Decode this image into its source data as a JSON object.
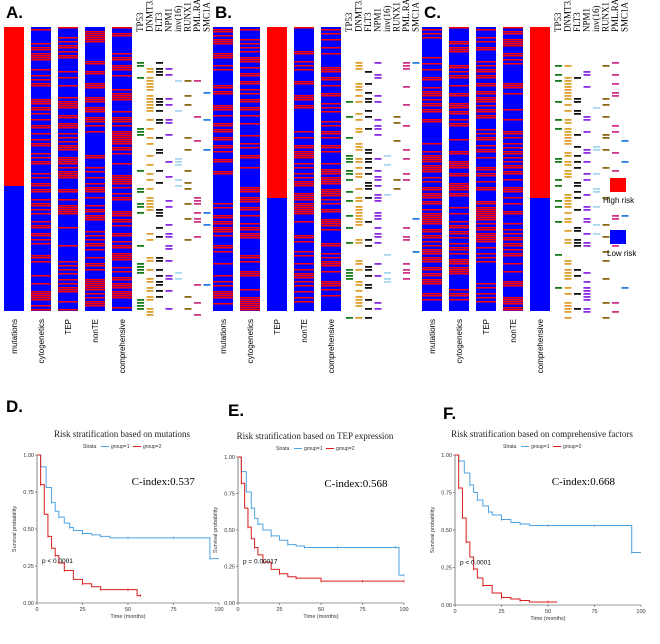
{
  "colors": {
    "high": "#ff0000",
    "low": "#0000ff",
    "km_group1": "#4fa3e0",
    "km_group2": "#d81e1e"
  },
  "legend": {
    "high_label": "High risk",
    "low_label": "Low risk"
  },
  "gene_labels": [
    "TP53",
    "DNMT3A",
    "FLT3",
    "NPM1",
    "inv(16)",
    "RUNX1",
    "PML.RARα",
    "SMC1A"
  ],
  "gene_colors": [
    "#1a7a1a",
    "#e0a030",
    "#111111",
    "#8a2be2",
    "#a8d8f0",
    "#8b6914",
    "#d0358a",
    "#2a7de1"
  ],
  "heatmaps": [
    {
      "label": "A.",
      "columns": [
        "mutations",
        "cytogenetics",
        "TEP",
        "nonTE",
        "comprehensive"
      ]
    },
    {
      "label": "B.",
      "columns": [
        "mutations",
        "cytogenetics",
        "TEP",
        "nonTE",
        "comprehensive"
      ]
    },
    {
      "label": "C.",
      "columns": [
        "mutations",
        "cytogenetics",
        "TEP",
        "nonTE",
        "comprehensive"
      ]
    }
  ],
  "chart_data": [
    {
      "type": "line",
      "panel": "D.",
      "title": "Risk stratification based on mutations",
      "xlabel": "Time (months)",
      "ylabel": "Survival probability",
      "strata_label": "Strata",
      "legend": [
        "group=1",
        "group=2"
      ],
      "c_index": "C-index:0.537",
      "p_value": "p < 0.0001",
      "xlim": [
        0,
        100
      ],
      "ylim": [
        0,
        1
      ],
      "x_ticks": [
        "0",
        "25",
        "50",
        "75",
        "100"
      ],
      "y_ticks": [
        "0.00",
        "0.25",
        "0.50",
        "0.75",
        "1.00"
      ],
      "series": [
        {
          "name": "group=1",
          "x": [
            0,
            2,
            5,
            8,
            10,
            12,
            15,
            18,
            20,
            25,
            30,
            35,
            40,
            50,
            60,
            75,
            95,
            95,
            100
          ],
          "y": [
            1.0,
            0.92,
            0.78,
            0.68,
            0.62,
            0.58,
            0.54,
            0.51,
            0.49,
            0.47,
            0.46,
            0.45,
            0.44,
            0.44,
            0.44,
            0.44,
            0.44,
            0.3,
            0.3
          ]
        },
        {
          "name": "group=2",
          "x": [
            0,
            2,
            4,
            6,
            8,
            10,
            12,
            15,
            20,
            25,
            30,
            35,
            40,
            50,
            55,
            57
          ],
          "y": [
            1.0,
            0.8,
            0.6,
            0.45,
            0.37,
            0.32,
            0.27,
            0.22,
            0.16,
            0.13,
            0.11,
            0.09,
            0.09,
            0.09,
            0.05,
            0.05
          ]
        }
      ]
    },
    {
      "type": "line",
      "panel": "E.",
      "title": "Risk stratification based on TEP expression",
      "xlabel": "Time (months)",
      "ylabel": "Survival probability",
      "strata_label": "Strata",
      "legend": [
        "group=1",
        "group=2"
      ],
      "c_index": "C-index:0.568",
      "p_value": "p = 0.00017",
      "xlim": [
        0,
        100
      ],
      "ylim": [
        0,
        1
      ],
      "x_ticks": [
        "0",
        "25",
        "50",
        "75",
        "100"
      ],
      "y_ticks": [
        "0.00",
        "0.25",
        "0.50",
        "0.75",
        "1.00"
      ],
      "series": [
        {
          "name": "group=1",
          "x": [
            0,
            2,
            5,
            8,
            10,
            12,
            15,
            20,
            25,
            30,
            35,
            40,
            50,
            60,
            75,
            95,
            97,
            100
          ],
          "y": [
            1.0,
            0.9,
            0.76,
            0.65,
            0.58,
            0.54,
            0.5,
            0.46,
            0.43,
            0.4,
            0.39,
            0.38,
            0.38,
            0.38,
            0.38,
            0.38,
            0.19,
            0.19
          ]
        },
        {
          "name": "group=2",
          "x": [
            0,
            2,
            4,
            6,
            8,
            10,
            12,
            15,
            20,
            25,
            30,
            35,
            40,
            50,
            60,
            75,
            90,
            100
          ],
          "y": [
            1.0,
            0.82,
            0.65,
            0.52,
            0.44,
            0.38,
            0.33,
            0.28,
            0.23,
            0.2,
            0.18,
            0.17,
            0.17,
            0.15,
            0.15,
            0.15,
            0.15,
            0.15
          ]
        }
      ]
    },
    {
      "type": "line",
      "panel": "F.",
      "title": "Risk stratification based on comprehensive  factors",
      "xlabel": "Time (months)",
      "ylabel": "Survival probability",
      "strata_label": "Strata",
      "legend": [
        "group=1",
        "group=2"
      ],
      "c_index": "C-index:0.668",
      "p_value": "p < 0.0001",
      "xlim": [
        0,
        100
      ],
      "ylim": [
        0,
        1
      ],
      "x_ticks": [
        "0",
        "25",
        "50",
        "75",
        "100"
      ],
      "y_ticks": [
        "0.00",
        "0.25",
        "0.50",
        "0.75",
        "1.00"
      ],
      "series": [
        {
          "name": "group=1",
          "x": [
            0,
            2,
            5,
            8,
            10,
            12,
            15,
            18,
            20,
            25,
            30,
            35,
            40,
            50,
            60,
            75,
            95,
            95,
            100
          ],
          "y": [
            1.0,
            0.96,
            0.88,
            0.8,
            0.75,
            0.7,
            0.66,
            0.62,
            0.6,
            0.57,
            0.55,
            0.54,
            0.53,
            0.53,
            0.53,
            0.53,
            0.53,
            0.35,
            0.35
          ]
        },
        {
          "name": "group=2",
          "x": [
            0,
            2,
            4,
            6,
            8,
            10,
            12,
            15,
            20,
            25,
            30,
            35,
            40,
            50,
            55
          ],
          "y": [
            1.0,
            0.78,
            0.58,
            0.42,
            0.32,
            0.24,
            0.18,
            0.13,
            0.08,
            0.05,
            0.04,
            0.03,
            0.02,
            0.02,
            0.02
          ]
        }
      ]
    }
  ]
}
